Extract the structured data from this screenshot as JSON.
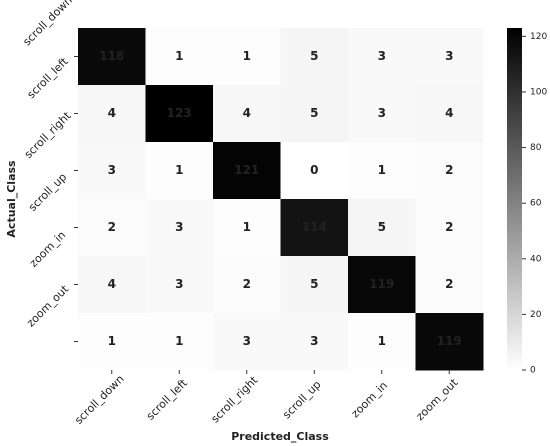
{
  "chart_data": {
    "type": "heatmap",
    "xlabel": "Predicted_Class",
    "ylabel": "Actual_Class",
    "x_categories": [
      "scroll_down",
      "scroll_left",
      "scroll_right",
      "scroll_up",
      "zoom_in",
      "zoom_out"
    ],
    "y_categories": [
      "scroll_down",
      "scroll_left",
      "scroll_right",
      "scroll_up",
      "zoom_in",
      "zoom_out"
    ],
    "values": [
      [
        118,
        1,
        1,
        5,
        3,
        3
      ],
      [
        4,
        123,
        4,
        5,
        3,
        4
      ],
      [
        3,
        1,
        121,
        0,
        1,
        2
      ],
      [
        2,
        3,
        1,
        114,
        5,
        2
      ],
      [
        4,
        3,
        2,
        5,
        119,
        2
      ],
      [
        1,
        1,
        3,
        3,
        1,
        119
      ]
    ],
    "colormap": [
      "#ffffff",
      "#000000"
    ],
    "zlim": [
      0,
      123
    ],
    "zticks": [
      0,
      20,
      40,
      60,
      80,
      100,
      120
    ]
  }
}
